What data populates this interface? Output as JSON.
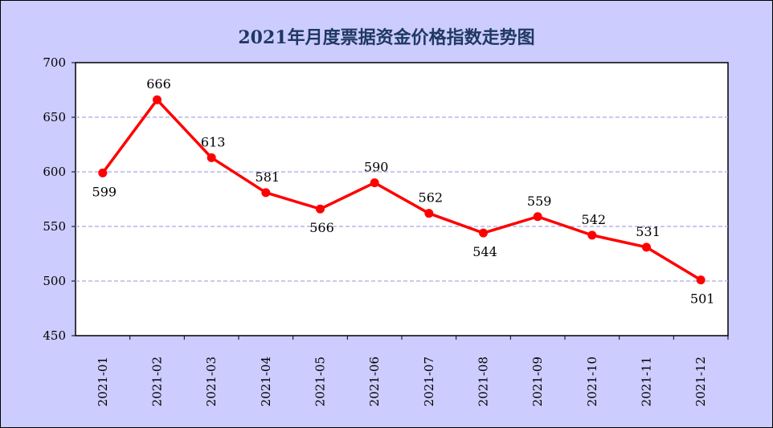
{
  "chart_data": {
    "type": "line",
    "title": "2021年月度票据资金价格指数走势图",
    "categories": [
      "2021-01",
      "2021-02",
      "2021-03",
      "2021-04",
      "2021-05",
      "2021-06",
      "2021-07",
      "2021-08",
      "2021-09",
      "2021-10",
      "2021-11",
      "2021-12"
    ],
    "series": [
      {
        "values": [
          599,
          666,
          613,
          581,
          566,
          590,
          562,
          544,
          559,
          542,
          531,
          501
        ]
      }
    ],
    "label_position": [
      "below",
      "above",
      "above",
      "above",
      "below",
      "above",
      "above",
      "below",
      "above",
      "above",
      "above",
      "below"
    ],
    "ylim": [
      450,
      700
    ],
    "yticks": [
      450,
      500,
      550,
      600,
      650,
      700
    ],
    "grid": true,
    "legend": "none",
    "colors": {
      "line": "#ff0000",
      "marker": "#ff0000",
      "background": "#ccccff",
      "plot_area": "#ffffff",
      "grid": "#a6a6e8",
      "title": "#1f3864"
    }
  }
}
